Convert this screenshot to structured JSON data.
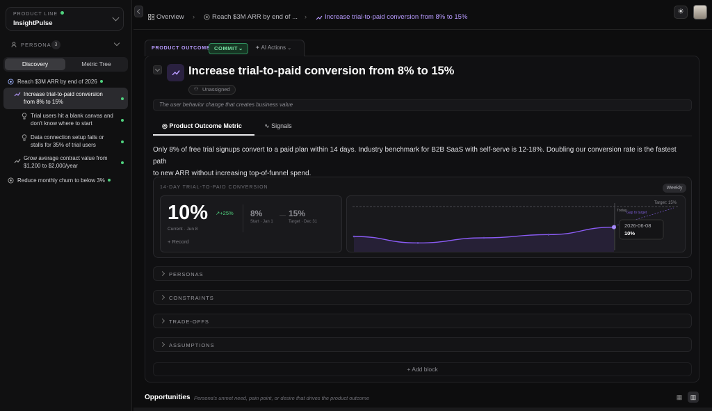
{
  "sidebar": {
    "product_line_label": "PRODUCT LINE",
    "product_line_name": "InsightPulse",
    "personas_label": "PERSONAS",
    "personas_count": "3",
    "view_tabs": [
      "Discovery",
      "Metric Tree"
    ],
    "tree": [
      {
        "label_1": "Reach $3M ARR by end of 2026"
      },
      {
        "label_1": "Increase trial-to-paid conversion",
        "label_2": "from 8% to 15%"
      },
      {
        "label_1": "Trial users hit a blank canvas and",
        "label_2": "don't know where to start"
      },
      {
        "label_1": "Data connection setup fails or",
        "label_2": "stalls for 35% of trial users"
      },
      {
        "label_1": "Grow average contract value from",
        "label_2": "$1,200 to $2,000/year"
      },
      {
        "label_1": "Reduce monthly churn to below 3%"
      }
    ]
  },
  "breadcrumb": {
    "items": [
      "Overview",
      "Reach $3M ARR by end of ...",
      "Increase trial-to-paid conversion from 8% to 15%"
    ]
  },
  "outcome": {
    "tab_label": "PRODUCT OUTCOME",
    "commit_label": "COMMIT",
    "ai_actions_label": "AI Actions",
    "title": "Increase trial-to-paid conversion from 8% to 15%",
    "assignee": "Unassigned",
    "subtitle": "The user behavior change that creates business value",
    "tabs": [
      "Product Outcome Metric",
      "Signals"
    ],
    "description_1": "Only 8% of free trial signups convert to a paid plan within 14 days. Industry benchmark for B2B SaaS with self-serve is 12-18%. Doubling our conversion rate is the fastest path",
    "description_2": "to new ARR without increasing top-of-funnel spend."
  },
  "metric": {
    "title": "14-DAY TRIAL-TO-PAID CONVERSION",
    "period": "Weekly",
    "current_value": "10%",
    "delta": "+25%",
    "current_label": "Current · Jun 8",
    "record_label": "Record",
    "start_value": "8%",
    "start_label": "Start · Jan 1",
    "target_value": "15%",
    "target_label": "Target · Dec 31",
    "chart_target_label": "Target: 15%",
    "today_label": "Today",
    "gap_label": "Gap to target",
    "tooltip_date": "2026-06-08",
    "tooltip_value": "10%"
  },
  "chart_data": {
    "type": "line",
    "title": "14-DAY TRIAL-TO-PAID CONVERSION",
    "xlabel": "",
    "ylabel": "",
    "x": [
      "",
      "",
      "",
      "",
      "2026-06-08"
    ],
    "series": [
      {
        "values": [
          8.0,
          6.6,
          7.7,
          8.4,
          10.0
        ]
      }
    ],
    "target": 15,
    "ylim": [
      5,
      15.5
    ],
    "grid": false,
    "line_color": "#8b5cf6"
  },
  "sections": [
    "PERSONAS",
    "CONSTRAINTS",
    "TRADE-OFFS",
    "ASSUMPTIONS"
  ],
  "add_block_label": "Add block",
  "opportunities": {
    "title": "Opportunities",
    "subtitle": "Persona's unmet need, pain point, or desire that drives the product outcome"
  },
  "colors": {
    "accent": "#b89bff",
    "success": "#4fd27e",
    "line": "#8b5cf6"
  }
}
